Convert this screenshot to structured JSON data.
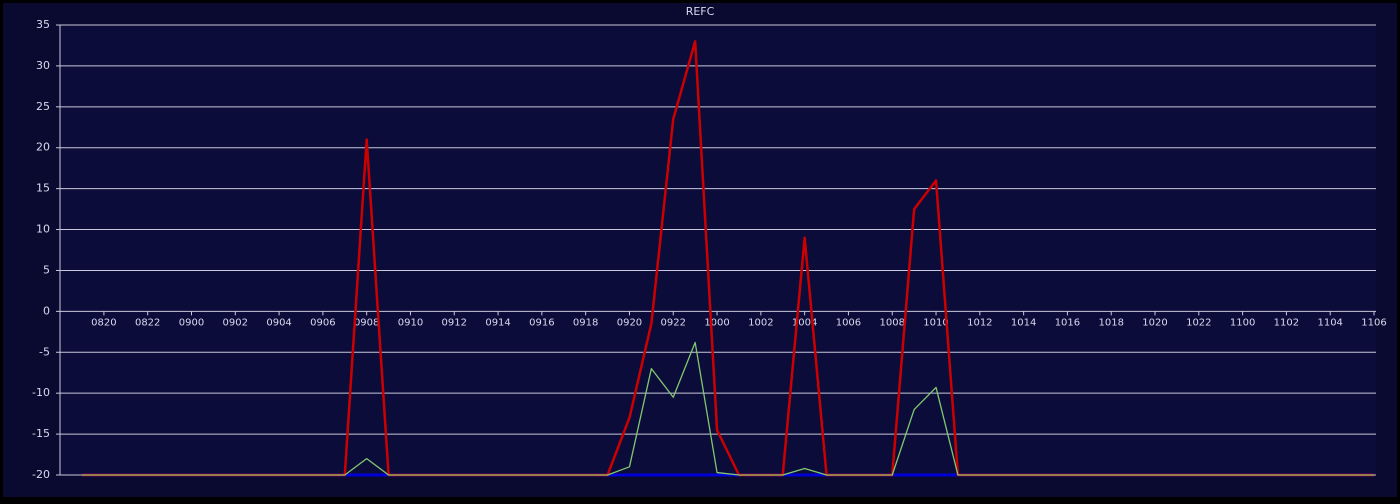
{
  "chart_data": {
    "type": "line",
    "title": "REFC",
    "categories": [
      null,
      "0820",
      null,
      "0822",
      null,
      "0900",
      null,
      "0902",
      null,
      "0904",
      null,
      "0906",
      null,
      "0908",
      null,
      "0910",
      null,
      "0912",
      null,
      "0914",
      null,
      "0916",
      null,
      "0918",
      null,
      "0920",
      null,
      "0922",
      null,
      "1000",
      null,
      "1002",
      null,
      "1004",
      null,
      "1006",
      null,
      "1008",
      null,
      "1010",
      null,
      "1012",
      null,
      "1014",
      null,
      "1016",
      null,
      "1018",
      null,
      "1020",
      null,
      "1022",
      null,
      "1100",
      null,
      "1102",
      null,
      "1104",
      null,
      "1106"
    ],
    "series": [
      {
        "color": "#0000d8",
        "values": [
          -20,
          -20,
          -20,
          -20,
          -20,
          -20,
          -20,
          -20,
          -20,
          -20,
          -20,
          -20,
          -20,
          -20,
          -20,
          -20,
          -20,
          -20,
          -20,
          -20,
          -20,
          -20,
          -20,
          -20,
          -20,
          -20,
          -20,
          -20,
          -20,
          -20,
          -20,
          -20,
          -20,
          -20,
          -20,
          -20,
          -20,
          -20,
          -20,
          -20,
          -20,
          -20,
          -20,
          -20,
          -20,
          -20,
          -20,
          -20,
          -20,
          -20,
          -20,
          -20,
          -20,
          -20,
          -20,
          -20,
          -20,
          -20,
          -20,
          -20
        ]
      },
      {
        "color": "#cc0000",
        "values": [
          -20,
          -20,
          -20,
          -20,
          -20,
          -20,
          -20,
          -20,
          -20,
          -20,
          -20,
          -20,
          -20,
          21,
          -20,
          -20,
          -20,
          -20,
          -20,
          -20,
          -20,
          -20,
          -20,
          -20,
          -20,
          -13,
          -1.5,
          23.5,
          33,
          -14.5,
          -20,
          -20,
          -20,
          9,
          -20,
          -20,
          -20,
          -20,
          12.5,
          16,
          -20,
          -20,
          -20,
          -20,
          -20,
          -20,
          -20,
          -20,
          -20,
          -20,
          -20,
          -20,
          -20,
          -20,
          -20,
          -20,
          -20,
          -20,
          -20,
          -20
        ]
      },
      {
        "color": "#80c870",
        "values": [
          -20,
          -20,
          -20,
          -20,
          -20,
          -20,
          -20,
          -20,
          -20,
          -20,
          -20,
          -20,
          -20,
          -18,
          -20,
          -20,
          -20,
          -20,
          -20,
          -20,
          -20,
          -20,
          -20,
          -20,
          -20,
          -19,
          -7,
          -10.5,
          -3.8,
          -19.7,
          -20,
          -20,
          -20,
          -19.2,
          -20,
          -20,
          -20,
          -20,
          -12,
          -9.3,
          -20,
          -20,
          -20,
          -20,
          -20,
          -20,
          -20,
          -20,
          -20,
          -20,
          -20,
          -20,
          -20,
          -20,
          -20,
          -20,
          -20,
          -20,
          -20,
          -20
        ]
      }
    ],
    "ylim": [
      -20,
      35
    ],
    "yticks": [
      -20,
      -15,
      -10,
      -5,
      0,
      5,
      10,
      15,
      20,
      25,
      30,
      35
    ],
    "grid": true
  }
}
